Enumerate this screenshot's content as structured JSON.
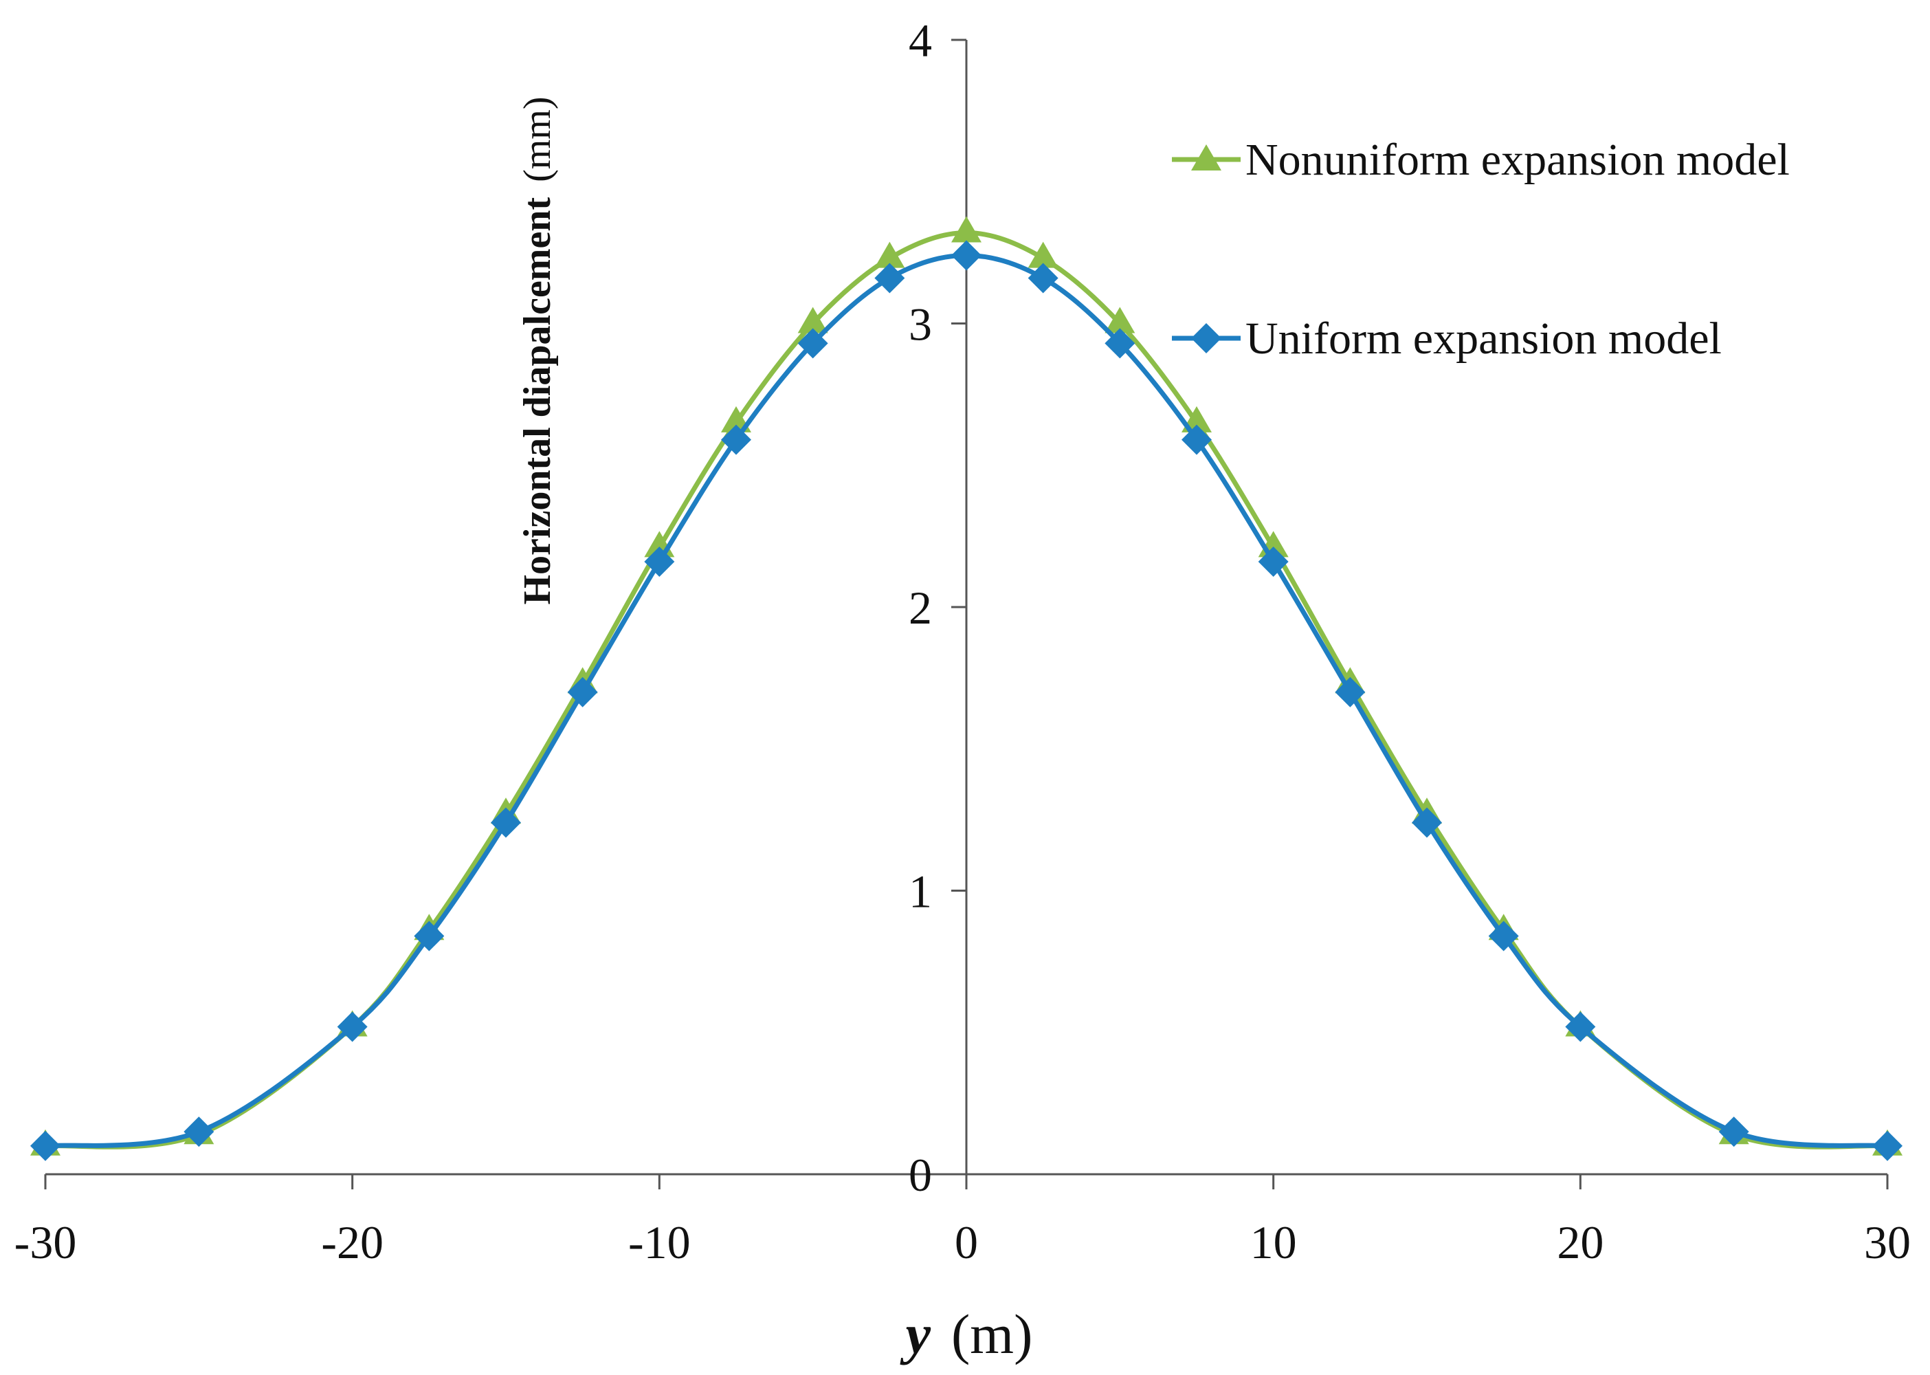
{
  "chart_data": {
    "type": "line",
    "title": "",
    "xlabel": "y",
    "xlabel_unit": "(m)",
    "ylabel": "Horizontal  diapalcement",
    "ylabel_unit": "(mm)",
    "xlim": [
      -30,
      30
    ],
    "ylim": [
      0,
      4
    ],
    "xticks": [
      -30,
      -20,
      -10,
      0,
      10,
      20,
      30
    ],
    "yticks": [
      0,
      1,
      2,
      3,
      4
    ],
    "xtick_labels": [
      "-30",
      "-20",
      "-10",
      "0",
      "10",
      "20",
      "30"
    ],
    "ytick_labels": [
      "0",
      "1",
      "2",
      "3",
      "4"
    ],
    "grid": false,
    "legend_position": "top-right",
    "series": [
      {
        "name": "Nonuniform expansion model",
        "color": "#8cbd48",
        "marker": "triangle",
        "x": [
          -30,
          -25,
          -20,
          -17.5,
          -15,
          -12.5,
          -10,
          -7.5,
          -5,
          -2.5,
          0,
          2.5,
          5,
          7.5,
          10,
          12.5,
          15,
          17.5,
          20,
          25,
          30
        ],
        "y": [
          0.1,
          0.14,
          0.52,
          0.86,
          1.27,
          1.73,
          2.21,
          2.65,
          3.0,
          3.23,
          3.32,
          3.23,
          3.0,
          2.65,
          2.21,
          1.73,
          1.27,
          0.86,
          0.52,
          0.14,
          0.1
        ]
      },
      {
        "name": "Uniform expansion model",
        "color": "#1e7ec2",
        "marker": "diamond",
        "x": [
          -30,
          -25,
          -20,
          -17.5,
          -15,
          -12.5,
          -10,
          -7.5,
          -5,
          -2.5,
          0,
          2.5,
          5,
          7.5,
          10,
          12.5,
          15,
          17.5,
          20,
          25,
          30
        ],
        "y": [
          0.1,
          0.15,
          0.52,
          0.84,
          1.24,
          1.7,
          2.16,
          2.59,
          2.93,
          3.16,
          3.24,
          3.16,
          2.93,
          2.59,
          2.16,
          1.7,
          1.24,
          0.84,
          0.52,
          0.15,
          0.1
        ]
      }
    ]
  }
}
